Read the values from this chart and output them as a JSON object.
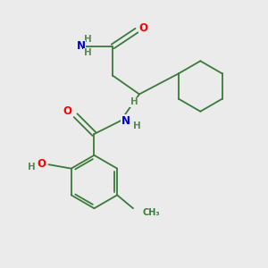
{
  "bg_color": "#ebebeb",
  "bond_color": "#3a7a3a",
  "atom_colors": {
    "O": "#ff0000",
    "N": "#0000cd",
    "H": "#5a8a5a",
    "C": "#3a7a3a"
  },
  "line_width": 1.3,
  "figsize": [
    3.0,
    3.0
  ],
  "dpi": 100
}
